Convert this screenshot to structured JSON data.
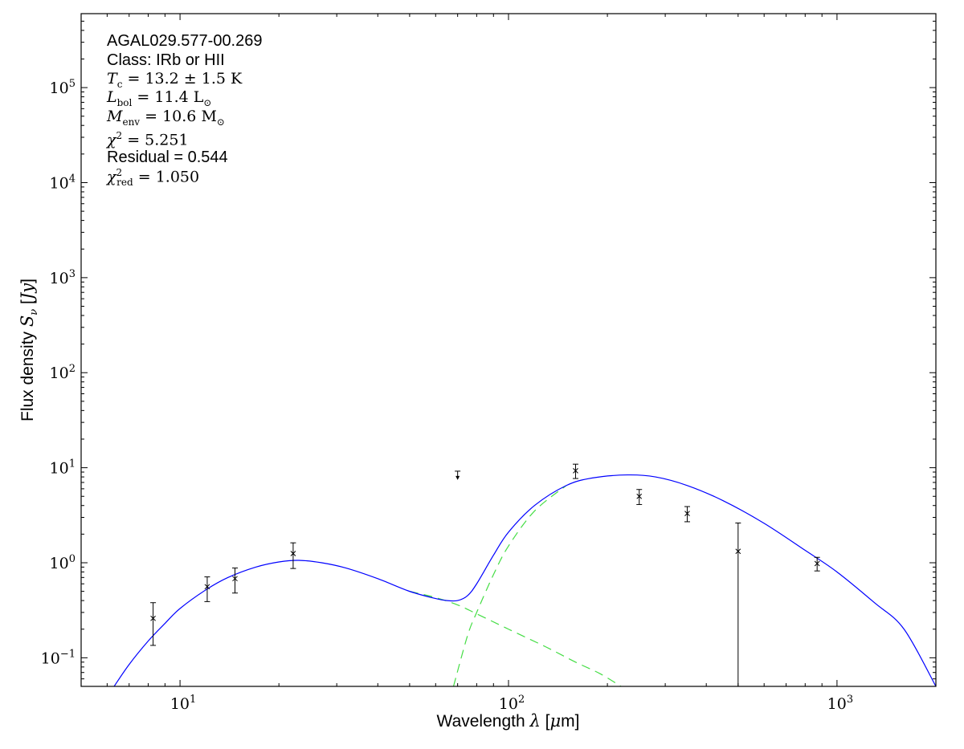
{
  "chart_data": {
    "type": "scatter",
    "xlabel": "Wavelength λ [μm]",
    "ylabel": "Flux density S_ν [Jy]",
    "xscale": "log",
    "yscale": "log",
    "xlim": [
      5,
      2000
    ],
    "ylim": [
      0.05,
      600000
    ],
    "x_ticks": [
      {
        "value": 10,
        "mantissa": "10",
        "exp": "1"
      },
      {
        "value": 100,
        "mantissa": "10",
        "exp": "2"
      },
      {
        "value": 1000,
        "mantissa": "10",
        "exp": "3"
      }
    ],
    "y_ticks": [
      {
        "value": 0.1,
        "mantissa": "10",
        "exp": "−1"
      },
      {
        "value": 1,
        "mantissa": "10",
        "exp": "0"
      },
      {
        "value": 10,
        "mantissa": "10",
        "exp": "1"
      },
      {
        "value": 100,
        "mantissa": "10",
        "exp": "2"
      },
      {
        "value": 1000,
        "mantissa": "10",
        "exp": "3"
      },
      {
        "value": 10000,
        "mantissa": "10",
        "exp": "4"
      },
      {
        "value": 100000,
        "mantissa": "10",
        "exp": "5"
      }
    ],
    "grid": false,
    "points": [
      {
        "x": 8.28,
        "y": 0.26,
        "yerr_low": 0.125,
        "yerr_high": 0.12
      },
      {
        "x": 12.1,
        "y": 0.56,
        "yerr_low": 0.17,
        "yerr_high": 0.15
      },
      {
        "x": 14.7,
        "y": 0.68,
        "yerr_low": 0.2,
        "yerr_high": 0.2
      },
      {
        "x": 22.1,
        "y": 1.25,
        "yerr_low": 0.38,
        "yerr_high": 0.37
      },
      {
        "x": 160,
        "y": 9.3,
        "yerr_low": 1.6,
        "yerr_high": 1.6
      },
      {
        "x": 250,
        "y": 5.0,
        "yerr_low": 0.9,
        "yerr_high": 0.9
      },
      {
        "x": 350,
        "y": 3.3,
        "yerr_low": 0.6,
        "yerr_high": 0.6
      },
      {
        "x": 500,
        "y": 1.32,
        "yerr_low": 1.3,
        "yerr_high": 1.3
      },
      {
        "x": 870,
        "y": 0.98,
        "yerr_low": 0.16,
        "yerr_high": 0.16
      }
    ],
    "upper_limits": [
      {
        "x": 70,
        "y": 9.2
      }
    ],
    "model_total": {
      "color": "#0000ff",
      "points": [
        [
          6.3,
          0.05
        ],
        [
          7,
          0.085
        ],
        [
          8,
          0.15
        ],
        [
          9,
          0.23
        ],
        [
          10,
          0.33
        ],
        [
          12,
          0.52
        ],
        [
          14,
          0.7
        ],
        [
          17,
          0.9
        ],
        [
          20,
          1.02
        ],
        [
          23,
          1.06
        ],
        [
          27,
          1.0
        ],
        [
          32,
          0.88
        ],
        [
          40,
          0.68
        ],
        [
          50,
          0.5
        ],
        [
          60,
          0.42
        ],
        [
          65,
          0.4
        ],
        [
          70,
          0.4
        ],
        [
          75,
          0.45
        ],
        [
          80,
          0.6
        ],
        [
          90,
          1.2
        ],
        [
          100,
          2.1
        ],
        [
          120,
          4.0
        ],
        [
          150,
          6.5
        ],
        [
          180,
          7.8
        ],
        [
          230,
          8.4
        ],
        [
          280,
          8.0
        ],
        [
          350,
          6.5
        ],
        [
          450,
          4.5
        ],
        [
          600,
          2.6
        ],
        [
          800,
          1.35
        ],
        [
          1000,
          0.8
        ],
        [
          1300,
          0.38
        ],
        [
          1600,
          0.2
        ],
        [
          2000,
          0.05
        ]
      ]
    },
    "model_components": [
      {
        "name": "warm",
        "color": "#44dd44",
        "style": "dashed",
        "points": [
          [
            50,
            0.5
          ],
          [
            60,
            0.43
          ],
          [
            70,
            0.36
          ],
          [
            80,
            0.29
          ],
          [
            100,
            0.2
          ],
          [
            130,
            0.13
          ],
          [
            160,
            0.09
          ],
          [
            190,
            0.068
          ],
          [
            220,
            0.05
          ]
        ]
      },
      {
        "name": "cold",
        "color": "#44dd44",
        "style": "dashed",
        "points": [
          [
            68,
            0.05
          ],
          [
            75,
            0.17
          ],
          [
            80,
            0.3
          ],
          [
            90,
            0.75
          ],
          [
            100,
            1.5
          ],
          [
            120,
            3.5
          ],
          [
            150,
            6.5
          ]
        ]
      }
    ]
  },
  "annotation": {
    "source": "AGAL029.577-00.269",
    "class": "Class: IRb or HII",
    "tc": {
      "value": "13.2 ± 1.5",
      "unit": "K"
    },
    "lbol": {
      "value": "11.4"
    },
    "menv": {
      "value": "10.6"
    },
    "chi2": {
      "value": "5.251"
    },
    "residual": "Residual = 0.544",
    "chi2_red": {
      "value": "1.050"
    }
  }
}
